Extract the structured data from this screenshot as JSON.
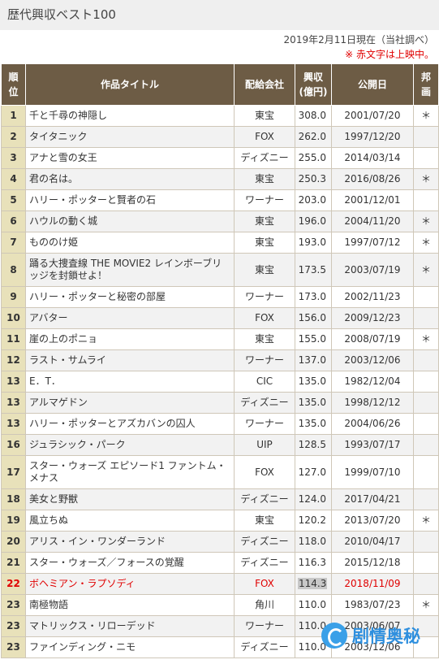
{
  "page_title": "歴代興収ベスト100",
  "date_note": "2019年2月11日現在（当社調べ）",
  "red_note": "※ 赤文字は上映中。",
  "columns": {
    "rank1": "順",
    "rank2": "位",
    "title": "作品タイトル",
    "distributor": "配給会社",
    "gross1": "興収",
    "gross2": "(億円)",
    "release": "公開日",
    "domestic1": "邦",
    "domestic2": "画"
  },
  "rows": [
    {
      "rank": "1",
      "title": "千と千尋の神隠し",
      "dist": "東宝",
      "gross": "308.0",
      "date": "2001/07/20",
      "domestic": "＊"
    },
    {
      "rank": "2",
      "title": "タイタニック",
      "dist": "FOX",
      "gross": "262.0",
      "date": "1997/12/20",
      "domestic": ""
    },
    {
      "rank": "3",
      "title": "アナと雪の女王",
      "dist": "ディズニー",
      "gross": "255.0",
      "date": "2014/03/14",
      "domestic": ""
    },
    {
      "rank": "4",
      "title": "君の名は。",
      "dist": "東宝",
      "gross": "250.3",
      "date": "2016/08/26",
      "domestic": "＊"
    },
    {
      "rank": "5",
      "title": "ハリー・ポッターと賢者の石",
      "dist": "ワーナー",
      "gross": "203.0",
      "date": "2001/12/01",
      "domestic": ""
    },
    {
      "rank": "6",
      "title": "ハウルの動く城",
      "dist": "東宝",
      "gross": "196.0",
      "date": "2004/11/20",
      "domestic": "＊"
    },
    {
      "rank": "7",
      "title": "もののけ姫",
      "dist": "東宝",
      "gross": "193.0",
      "date": "1997/07/12",
      "domestic": "＊"
    },
    {
      "rank": "8",
      "title": "踊る大捜査線 THE MOVIE2 レインボーブリッジを封鎖せよ！",
      "dist": "東宝",
      "gross": "173.5",
      "date": "2003/07/19",
      "domestic": "＊"
    },
    {
      "rank": "9",
      "title": "ハリー・ポッターと秘密の部屋",
      "dist": "ワーナー",
      "gross": "173.0",
      "date": "2002/11/23",
      "domestic": ""
    },
    {
      "rank": "10",
      "title": "アバター",
      "dist": "FOX",
      "gross": "156.0",
      "date": "2009/12/23",
      "domestic": ""
    },
    {
      "rank": "11",
      "title": "崖の上のポニョ",
      "dist": "東宝",
      "gross": "155.0",
      "date": "2008/07/19",
      "domestic": "＊"
    },
    {
      "rank": "12",
      "title": "ラスト・サムライ",
      "dist": "ワーナー",
      "gross": "137.0",
      "date": "2003/12/06",
      "domestic": ""
    },
    {
      "rank": "13",
      "title": "E．T．",
      "dist": "CIC",
      "gross": "135.0",
      "date": "1982/12/04",
      "domestic": ""
    },
    {
      "rank": "13",
      "title": "アルマゲドン",
      "dist": "ディズニー",
      "gross": "135.0",
      "date": "1998/12/12",
      "domestic": ""
    },
    {
      "rank": "13",
      "title": "ハリー・ポッターとアズカバンの囚人",
      "dist": "ワーナー",
      "gross": "135.0",
      "date": "2004/06/26",
      "domestic": ""
    },
    {
      "rank": "16",
      "title": "ジュラシック・パーク",
      "dist": "UIP",
      "gross": "128.5",
      "date": "1993/07/17",
      "domestic": ""
    },
    {
      "rank": "17",
      "title": "スター・ウォーズ エピソード1 ファントム・メナス",
      "dist": "FOX",
      "gross": "127.0",
      "date": "1999/07/10",
      "domestic": ""
    },
    {
      "rank": "18",
      "title": "美女と野獣",
      "dist": "ディズニー",
      "gross": "124.0",
      "date": "2017/04/21",
      "domestic": ""
    },
    {
      "rank": "19",
      "title": "風立ちぬ",
      "dist": "東宝",
      "gross": "120.2",
      "date": "2013/07/20",
      "domestic": "＊"
    },
    {
      "rank": "20",
      "title": "アリス・イン・ワンダーランド",
      "dist": "ディズニー",
      "gross": "118.0",
      "date": "2010/04/17",
      "domestic": ""
    },
    {
      "rank": "21",
      "title": "スター・ウォーズ／フォースの覚醒",
      "dist": "ディズニー",
      "gross": "116.3",
      "date": "2015/12/18",
      "domestic": ""
    },
    {
      "rank": "22",
      "title": "ボヘミアン・ラプソディ",
      "dist": "FOX",
      "gross": "114.3",
      "date": "2018/11/09",
      "domestic": "",
      "highlight": true
    },
    {
      "rank": "23",
      "title": "南極物語",
      "dist": "角川",
      "gross": "110.0",
      "date": "1983/07/23",
      "domestic": "＊"
    },
    {
      "rank": "23",
      "title": "マトリックス・リローデッド",
      "dist": "ワーナー",
      "gross": "110.0",
      "date": "2003/06/07",
      "domestic": ""
    },
    {
      "rank": "23",
      "title": "ファインディング・ニモ",
      "dist": "ディズニー",
      "gross": "110.0",
      "date": "2003/12/06",
      "domestic": ""
    }
  ],
  "watermark": "剧情奥秘",
  "colors": {
    "header_bg": "#6d5c45",
    "rank_bg": "#e8e1ba",
    "red": "#e00000",
    "title_bar": "#efefef"
  }
}
